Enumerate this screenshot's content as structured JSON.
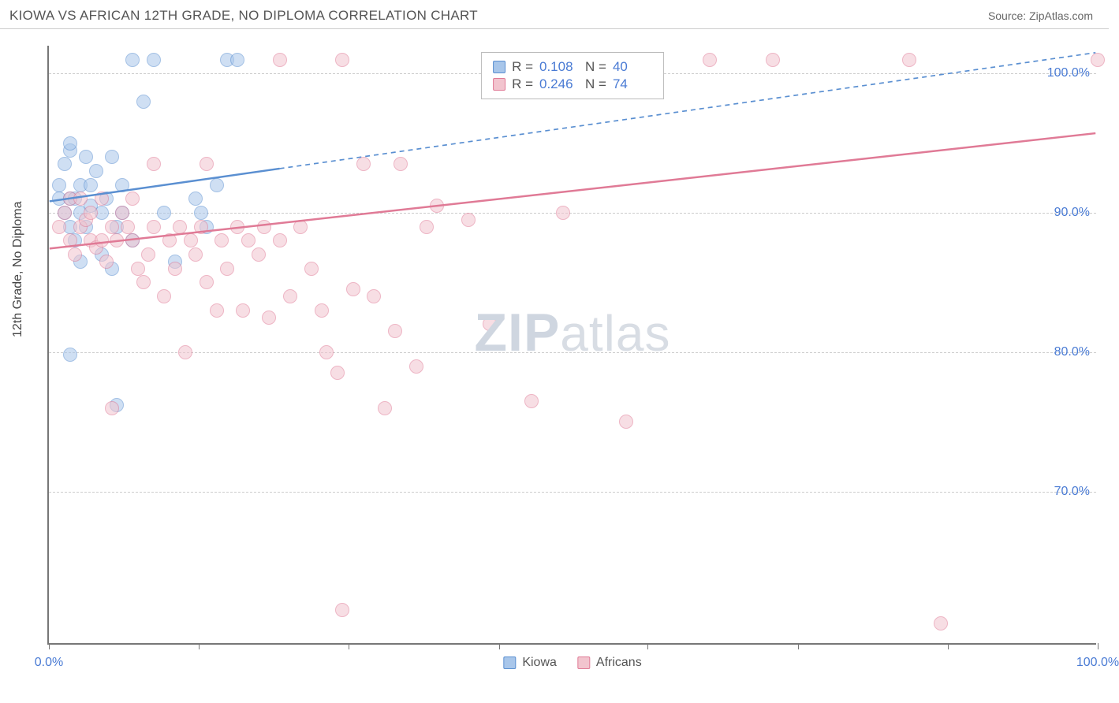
{
  "header": {
    "title": "KIOWA VS AFRICAN 12TH GRADE, NO DIPLOMA CORRELATION CHART",
    "source_prefix": "Source: ",
    "source_link": "ZipAtlas.com"
  },
  "chart": {
    "type": "scatter",
    "ylabel": "12th Grade, No Diploma",
    "background_color": "#ffffff",
    "grid_color": "#cccccc",
    "axis_color": "#777777",
    "tick_label_color": "#4a7bd4",
    "marker_radius": 9,
    "marker_opacity": 0.55,
    "x_range": [
      0,
      100
    ],
    "y_range": [
      59,
      102
    ],
    "y_ticks": [
      70,
      80,
      90,
      100
    ],
    "y_tick_labels": [
      "70.0%",
      "80.0%",
      "90.0%",
      "100.0%"
    ],
    "x_ticks": [
      0,
      14.3,
      28.6,
      42.9,
      57.1,
      71.4,
      85.7,
      100
    ],
    "x_tick_labels": {
      "0": "0.0%",
      "100": "100.0%"
    },
    "watermark": {
      "text_bold": "ZIP",
      "text_rest": "atlas"
    },
    "series": [
      {
        "name": "Kiowa",
        "fill": "#a8c6ea",
        "stroke": "#5a8fd1",
        "R": "0.108",
        "N": "40",
        "trend": {
          "x1": 0,
          "y1": 90.8,
          "x2": 100,
          "y2": 101.5,
          "solid_until_x": 22,
          "stroke_width": 2.5
        },
        "points": [
          [
            1,
            91
          ],
          [
            1,
            92
          ],
          [
            1.5,
            90
          ],
          [
            1.5,
            93.5
          ],
          [
            2,
            89
          ],
          [
            2,
            91
          ],
          [
            2,
            94.5
          ],
          [
            2,
            95
          ],
          [
            2.5,
            88
          ],
          [
            2.5,
            91
          ],
          [
            3,
            86.5
          ],
          [
            3,
            90
          ],
          [
            3,
            92
          ],
          [
            3.5,
            89
          ],
          [
            3.5,
            94
          ],
          [
            4,
            90.5
          ],
          [
            4,
            92
          ],
          [
            4.5,
            93
          ],
          [
            5,
            87
          ],
          [
            5,
            90
          ],
          [
            5.5,
            91
          ],
          [
            6,
            86
          ],
          [
            6,
            94
          ],
          [
            6.5,
            89
          ],
          [
            7,
            90
          ],
          [
            7,
            92
          ],
          [
            8,
            88
          ],
          [
            8,
            101
          ],
          [
            9,
            98
          ],
          [
            10,
            101
          ],
          [
            11,
            90
          ],
          [
            12,
            86.5
          ],
          [
            14,
            91
          ],
          [
            14.5,
            90
          ],
          [
            15,
            89
          ],
          [
            16,
            92
          ],
          [
            17,
            101
          ],
          [
            18,
            101
          ],
          [
            2,
            79.8
          ],
          [
            6.5,
            76.2
          ]
        ]
      },
      {
        "name": "Africans",
        "fill": "#f2c4ce",
        "stroke": "#e07a96",
        "R": "0.246",
        "N": "74",
        "trend": {
          "x1": 0,
          "y1": 87.4,
          "x2": 100,
          "y2": 95.7,
          "solid_until_x": 100,
          "stroke_width": 2.5
        },
        "points": [
          [
            1,
            89
          ],
          [
            1.5,
            90
          ],
          [
            2,
            88
          ],
          [
            2,
            91
          ],
          [
            2.5,
            87
          ],
          [
            3,
            89
          ],
          [
            3,
            91
          ],
          [
            3.5,
            89.5
          ],
          [
            4,
            88
          ],
          [
            4,
            90
          ],
          [
            4.5,
            87.5
          ],
          [
            5,
            88
          ],
          [
            5,
            91
          ],
          [
            5.5,
            86.5
          ],
          [
            6,
            89
          ],
          [
            6.5,
            88
          ],
          [
            7,
            90
          ],
          [
            7.5,
            89
          ],
          [
            8,
            88
          ],
          [
            8,
            91
          ],
          [
            8.5,
            86
          ],
          [
            9,
            85
          ],
          [
            9.5,
            87
          ],
          [
            10,
            89
          ],
          [
            10,
            93.5
          ],
          [
            11,
            84
          ],
          [
            11.5,
            88
          ],
          [
            12,
            86
          ],
          [
            12.5,
            89
          ],
          [
            13,
            80
          ],
          [
            13.5,
            88
          ],
          [
            14,
            87
          ],
          [
            14.5,
            89
          ],
          [
            15,
            85
          ],
          [
            15,
            93.5
          ],
          [
            16,
            83
          ],
          [
            16.5,
            88
          ],
          [
            17,
            86
          ],
          [
            18,
            89
          ],
          [
            18.5,
            83
          ],
          [
            19,
            88
          ],
          [
            20,
            87
          ],
          [
            20.5,
            89
          ],
          [
            21,
            82.5
          ],
          [
            22,
            88
          ],
          [
            22,
            101
          ],
          [
            23,
            84
          ],
          [
            24,
            89
          ],
          [
            25,
            86
          ],
          [
            26,
            83
          ],
          [
            26.5,
            80
          ],
          [
            27.5,
            78.5
          ],
          [
            28,
            101
          ],
          [
            29,
            84.5
          ],
          [
            30,
            93.5
          ],
          [
            31,
            84
          ],
          [
            32,
            76
          ],
          [
            33,
            81.5
          ],
          [
            33.5,
            93.5
          ],
          [
            35,
            79
          ],
          [
            36,
            89
          ],
          [
            37,
            90.5
          ],
          [
            40,
            89.5
          ],
          [
            42,
            82
          ],
          [
            46,
            76.5
          ],
          [
            49,
            90
          ],
          [
            55,
            75
          ],
          [
            63,
            101
          ],
          [
            69,
            101
          ],
          [
            82,
            101
          ],
          [
            85,
            60.5
          ],
          [
            100,
            101
          ],
          [
            6,
            76
          ],
          [
            28,
            61.5
          ]
        ]
      }
    ],
    "legend_bottom": [
      {
        "label": "Kiowa",
        "fill": "#a8c6ea",
        "stroke": "#5a8fd1"
      },
      {
        "label": "Africans",
        "fill": "#f2c4ce",
        "stroke": "#e07a96"
      }
    ]
  }
}
